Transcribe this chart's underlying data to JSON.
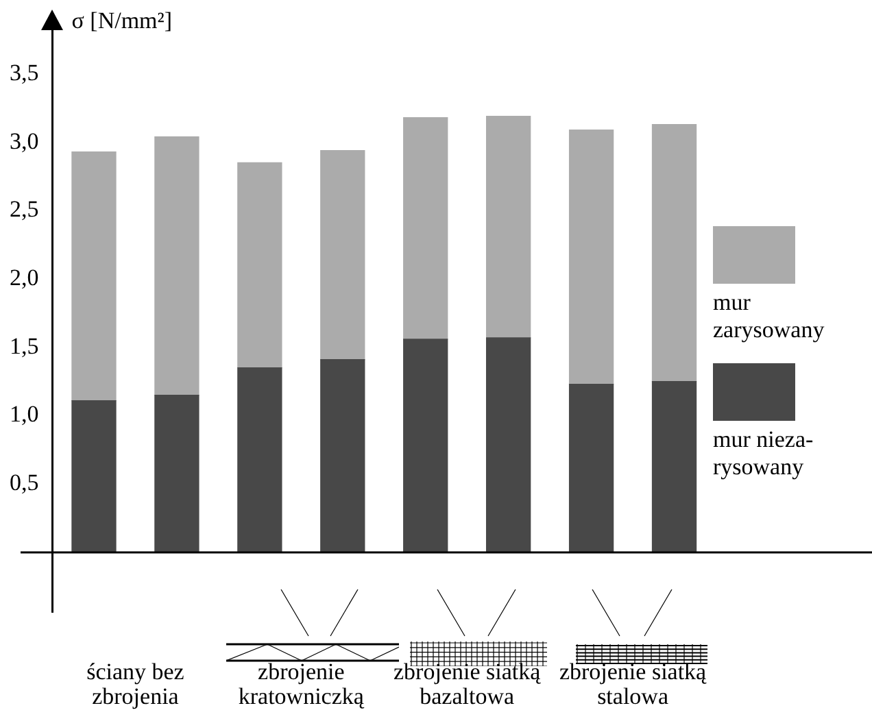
{
  "chart_data": {
    "type": "bar",
    "stacked": true,
    "ylabel": "σ [N/mm²]",
    "categories": [
      "ściany bez zbrojenia",
      null,
      "zbrojenie kratowniczką",
      null,
      "zbrojenie siatką bazaltowa",
      null,
      "zbrojenie siatką stalowa",
      null
    ],
    "series": [
      {
        "name": "mur nieza-rysowany",
        "color": "#484848",
        "values": [
          1.11,
          1.15,
          1.35,
          1.41,
          1.56,
          1.57,
          1.23,
          1.25
        ]
      },
      {
        "name": "mur zarysowany",
        "color": "#ababab",
        "values": [
          1.82,
          1.89,
          1.5,
          1.53,
          1.62,
          1.62,
          1.86,
          1.88
        ]
      }
    ],
    "ylim": [
      0,
      3.8
    ],
    "yticks": [
      {
        "value": 0.5,
        "label": "0,5"
      },
      {
        "value": 1,
        "label": "1,0"
      },
      {
        "value": 1.5,
        "label": "1,5"
      },
      {
        "value": 2,
        "label": "2,0"
      },
      {
        "value": 2.5,
        "label": "2,5"
      },
      {
        "value": 3,
        "label": "3,0"
      },
      {
        "value": 3.5,
        "label": "3,5"
      }
    ],
    "grid": false,
    "legend": "right"
  }
}
